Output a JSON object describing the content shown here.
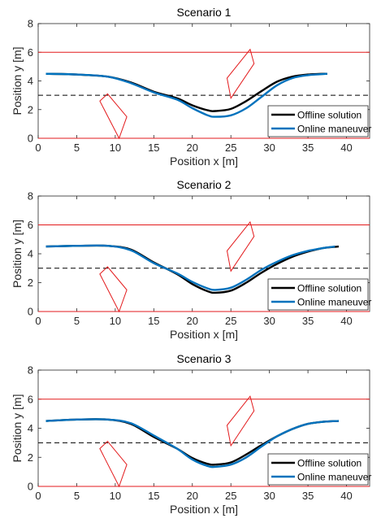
{
  "chart_data": [
    {
      "type": "line",
      "title": "Scenario 1",
      "xlabel": "Position x [m]",
      "ylabel": "Position y [m]",
      "xlim": [
        0,
        43
      ],
      "ylim": [
        0,
        8
      ],
      "xticks": [
        0,
        5,
        10,
        15,
        20,
        25,
        30,
        35,
        40
      ],
      "yticks": [
        0,
        2,
        4,
        6,
        8
      ],
      "grid": false,
      "legend_position": "bottom-right",
      "colors": {
        "offline": "#000000",
        "online": "#0072BD",
        "boundary": "#E31A1C",
        "center": "#000000"
      },
      "boundaries": [
        0,
        6
      ],
      "center_line": 3,
      "series": [
        {
          "name": "Offline solution",
          "x": [
            1,
            5,
            9,
            12,
            15,
            18,
            20,
            22,
            23,
            25,
            27,
            29,
            31,
            33,
            35,
            37.5
          ],
          "y": [
            4.5,
            4.45,
            4.3,
            3.9,
            3.25,
            2.8,
            2.3,
            1.95,
            1.9,
            2.05,
            2.6,
            3.3,
            3.95,
            4.3,
            4.45,
            4.5
          ]
        },
        {
          "name": "Online maneuver",
          "x": [
            1,
            5,
            9,
            12,
            15,
            18,
            20,
            22,
            23,
            25,
            27,
            29,
            31,
            33,
            35,
            37.5
          ],
          "y": [
            4.5,
            4.45,
            4.3,
            3.85,
            3.2,
            2.7,
            2.1,
            1.6,
            1.5,
            1.6,
            2.1,
            2.9,
            3.7,
            4.2,
            4.4,
            4.5
          ]
        }
      ],
      "obstacles": [
        [
          [
            8,
            2.6
          ],
          [
            10.5,
            0
          ],
          [
            11.5,
            1.5
          ],
          [
            9,
            3.1
          ]
        ],
        [
          [
            24.5,
            4.2
          ],
          [
            25,
            2.8
          ],
          [
            28,
            5.2
          ],
          [
            27.5,
            6.2
          ]
        ]
      ]
    },
    {
      "type": "line",
      "title": "Scenario 2",
      "xlabel": "Position x [m]",
      "ylabel": "Position y [m]",
      "xlim": [
        0,
        43
      ],
      "ylim": [
        0,
        8
      ],
      "xticks": [
        0,
        5,
        10,
        15,
        20,
        25,
        30,
        35,
        40
      ],
      "yticks": [
        0,
        2,
        4,
        6,
        8
      ],
      "grid": false,
      "legend_position": "bottom-right",
      "colors": {
        "offline": "#000000",
        "online": "#0072BD",
        "boundary": "#E31A1C",
        "center": "#000000"
      },
      "boundaries": [
        0,
        6
      ],
      "center_line": 3,
      "series": [
        {
          "name": "Offline solution",
          "x": [
            1,
            5,
            9,
            12,
            15,
            18,
            20,
            22,
            23,
            25,
            27,
            29,
            31,
            33,
            35,
            37,
            39
          ],
          "y": [
            4.5,
            4.55,
            4.55,
            4.3,
            3.4,
            2.6,
            1.9,
            1.4,
            1.3,
            1.45,
            2.0,
            2.7,
            3.3,
            3.8,
            4.15,
            4.4,
            4.5
          ]
        },
        {
          "name": "Online maneuver",
          "x": [
            1,
            5,
            9,
            12,
            15,
            18,
            20,
            22,
            23,
            25,
            27,
            29,
            31,
            33,
            35,
            37,
            38.5
          ],
          "y": [
            4.5,
            4.55,
            4.55,
            4.25,
            3.35,
            2.65,
            2.05,
            1.6,
            1.5,
            1.65,
            2.2,
            2.9,
            3.45,
            3.9,
            4.2,
            4.4,
            4.5
          ]
        }
      ],
      "obstacles": [
        [
          [
            8,
            2.6
          ],
          [
            10.5,
            0
          ],
          [
            11.5,
            1.5
          ],
          [
            9,
            3.1
          ]
        ],
        [
          [
            24.5,
            4.2
          ],
          [
            25,
            2.8
          ],
          [
            28,
            5.2
          ],
          [
            27.5,
            6.2
          ]
        ]
      ]
    },
    {
      "type": "line",
      "title": "Scenario 3",
      "xlabel": "Position x [m]",
      "ylabel": "Position y [m]",
      "xlim": [
        0,
        43
      ],
      "ylim": [
        0,
        8
      ],
      "xticks": [
        0,
        5,
        10,
        15,
        20,
        25,
        30,
        35,
        40
      ],
      "yticks": [
        0,
        2,
        4,
        6,
        8
      ],
      "grid": false,
      "legend_position": "bottom-right",
      "colors": {
        "offline": "#000000",
        "online": "#0072BD",
        "boundary": "#E31A1C",
        "center": "#000000"
      },
      "boundaries": [
        0,
        6
      ],
      "center_line": 3,
      "series": [
        {
          "name": "Offline solution",
          "x": [
            1,
            5,
            9,
            12,
            15,
            18,
            20,
            22,
            23,
            25,
            27,
            29,
            31,
            33,
            35,
            37,
            39
          ],
          "y": [
            4.5,
            4.6,
            4.6,
            4.3,
            3.4,
            2.6,
            1.95,
            1.55,
            1.5,
            1.65,
            2.2,
            2.85,
            3.45,
            3.95,
            4.3,
            4.45,
            4.5
          ]
        },
        {
          "name": "Online maneuver",
          "x": [
            1,
            5,
            9,
            12,
            15,
            18,
            20,
            22,
            23,
            25,
            27,
            29,
            31,
            33,
            35,
            37,
            39
          ],
          "y": [
            4.5,
            4.6,
            4.6,
            4.35,
            3.5,
            2.6,
            1.85,
            1.4,
            1.35,
            1.5,
            2.0,
            2.75,
            3.45,
            3.95,
            4.3,
            4.45,
            4.5
          ]
        }
      ],
      "obstacles": [
        [
          [
            8,
            2.6
          ],
          [
            10.5,
            0
          ],
          [
            11.5,
            1.5
          ],
          [
            9,
            3.1
          ]
        ],
        [
          [
            24.5,
            4.2
          ],
          [
            25,
            2.8
          ],
          [
            28,
            5.2
          ],
          [
            27.5,
            6.2
          ]
        ]
      ]
    }
  ]
}
